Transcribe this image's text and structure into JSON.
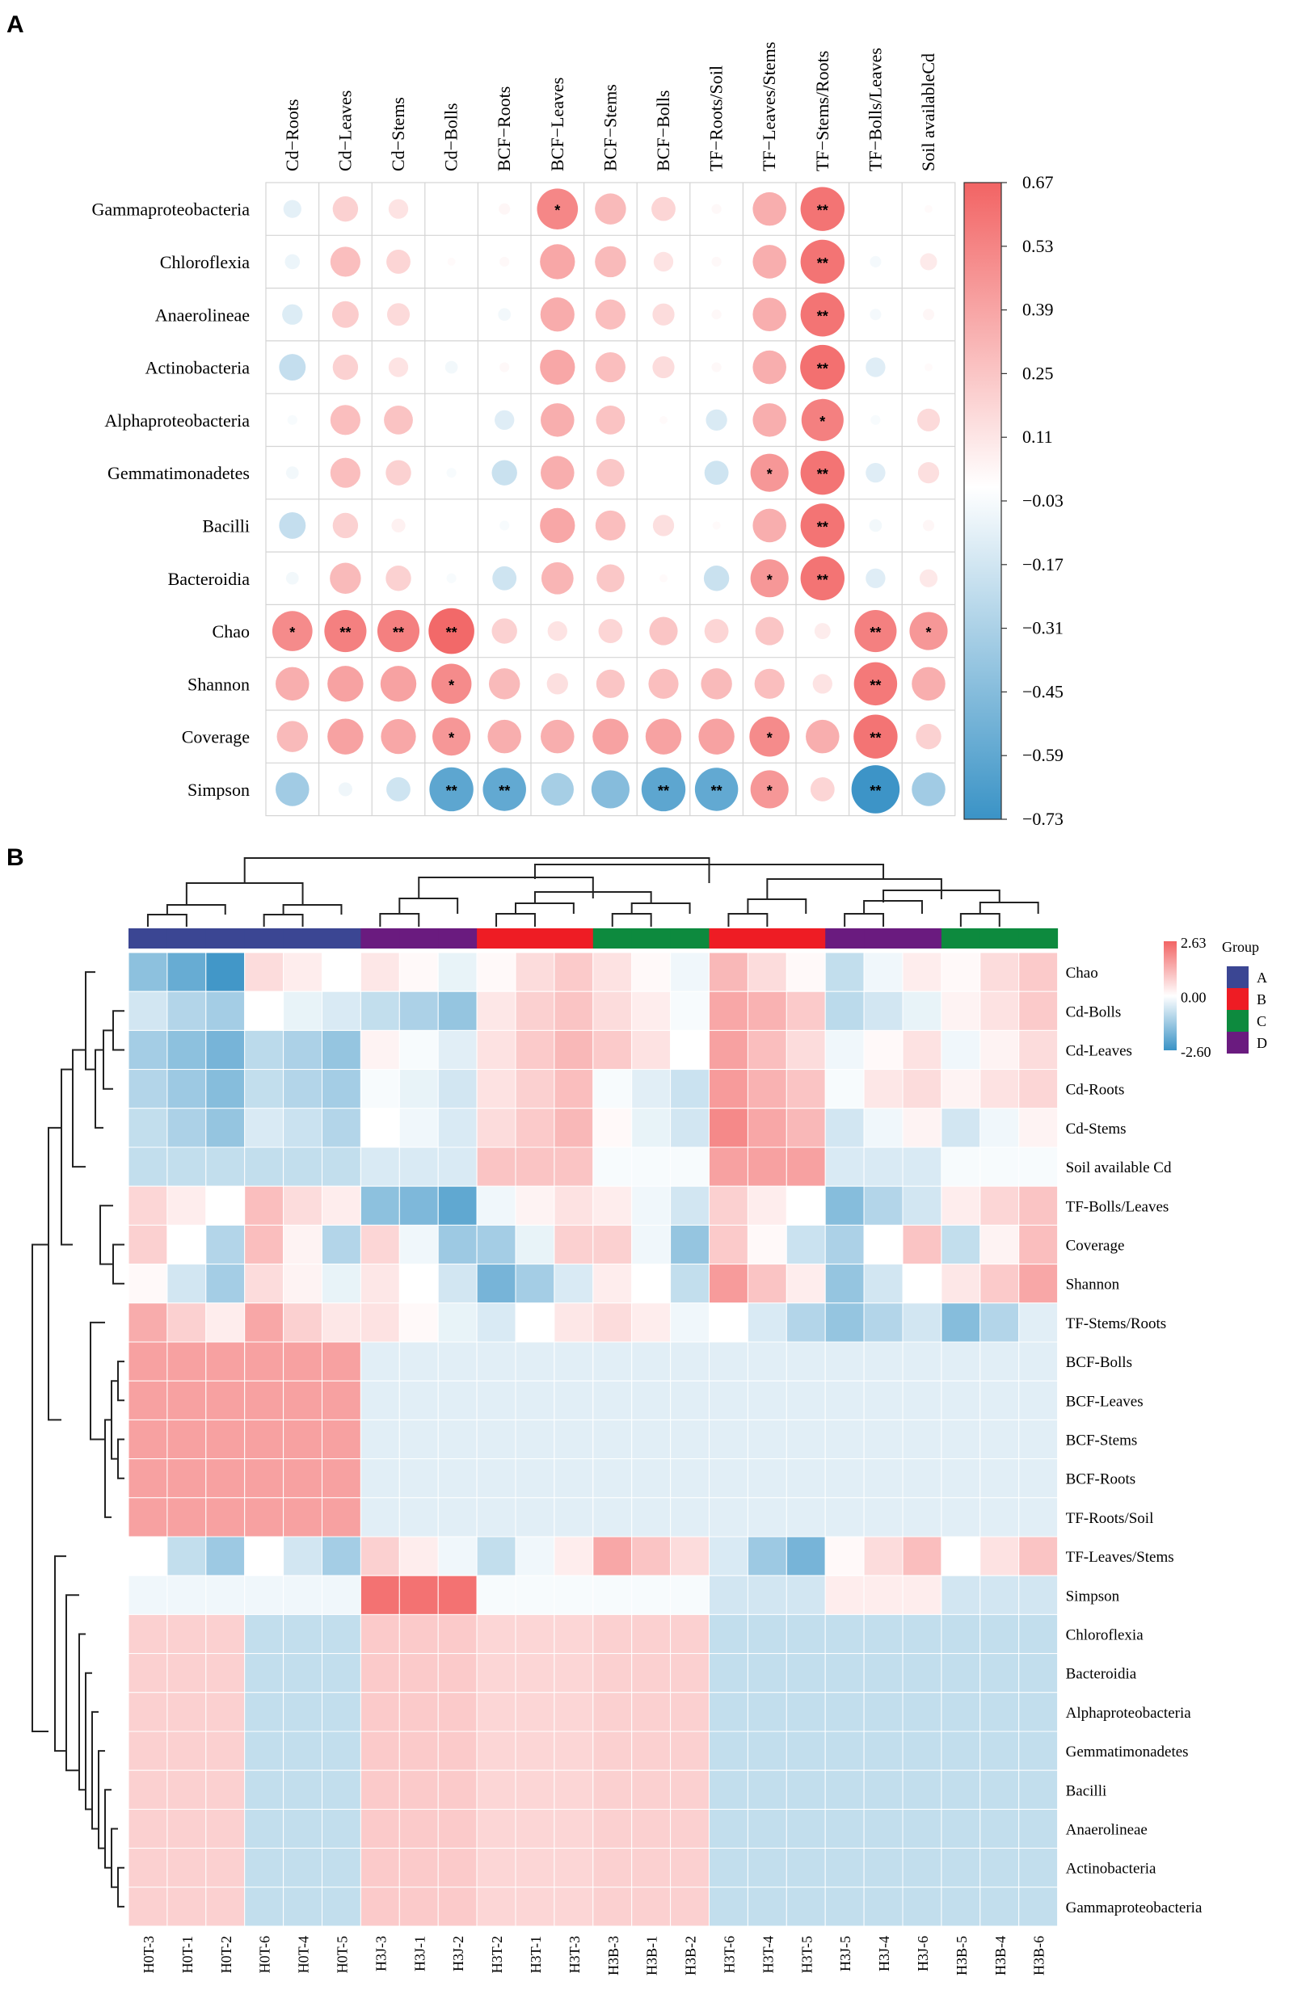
{
  "panel_a_label": "A",
  "panel_b_label": "B",
  "chart_data": [
    {
      "type": "heatmap",
      "subtype": "correlation-bubble",
      "columns": [
        "Cd−Roots",
        "Cd−Leaves",
        "Cd−Stems",
        "Cd−Bolls",
        "BCF−Roots",
        "BCF−Leaves",
        "BCF−Stems",
        "BCF−Bolls",
        "TF−Roots/Soil",
        "TF−Leaves/Stems",
        "TF−Stems/Roots",
        "TF−Bolls/Leaves",
        "Soil availableCd"
      ],
      "rows": [
        "Gammaproteobacteria",
        "Chloroflexia",
        "Anaerolineae",
        "Actinobacteria",
        "Alphaproteobacteria",
        "Gemmatimonadetes",
        "Bacilli",
        "Bacteroidia",
        "Chao",
        "Shannon",
        "Coverage",
        "Simpson"
      ],
      "values": [
        [
          -0.1,
          0.2,
          0.12,
          0.0,
          0.04,
          0.52,
          0.3,
          0.18,
          0.03,
          0.35,
          0.6,
          0.0,
          0.02
        ],
        [
          -0.07,
          0.28,
          0.18,
          0.02,
          0.03,
          0.38,
          0.3,
          0.12,
          0.03,
          0.35,
          0.6,
          -0.04,
          0.09
        ],
        [
          -0.13,
          0.22,
          0.16,
          0.0,
          -0.05,
          0.36,
          0.28,
          0.15,
          0.03,
          0.35,
          0.6,
          -0.04,
          0.04
        ],
        [
          -0.22,
          0.2,
          0.12,
          -0.05,
          0.03,
          0.38,
          0.28,
          0.15,
          0.03,
          0.35,
          0.62,
          -0.12,
          0.02
        ],
        [
          -0.03,
          0.28,
          0.26,
          0.0,
          -0.12,
          0.35,
          0.26,
          0.02,
          -0.14,
          0.35,
          0.55,
          -0.03,
          0.16
        ],
        [
          -0.05,
          0.28,
          0.2,
          -0.03,
          -0.2,
          0.35,
          0.24,
          0.0,
          -0.18,
          0.45,
          0.6,
          -0.12,
          0.14
        ],
        [
          -0.22,
          0.2,
          0.06,
          0.0,
          -0.03,
          0.38,
          0.28,
          0.14,
          0.02,
          0.35,
          0.6,
          -0.05,
          0.04
        ],
        [
          -0.05,
          0.3,
          0.2,
          -0.03,
          -0.18,
          0.32,
          0.24,
          0.02,
          -0.2,
          0.45,
          0.6,
          -0.12,
          0.1
        ],
        [
          0.5,
          0.55,
          0.55,
          0.65,
          0.2,
          0.12,
          0.18,
          0.25,
          0.18,
          0.25,
          0.08,
          0.55,
          0.45
        ],
        [
          0.35,
          0.4,
          0.4,
          0.5,
          0.3,
          0.14,
          0.25,
          0.28,
          0.3,
          0.28,
          0.12,
          0.58,
          0.35
        ],
        [
          0.3,
          0.4,
          0.38,
          0.45,
          0.35,
          0.35,
          0.4,
          0.4,
          0.4,
          0.5,
          0.35,
          0.6,
          0.2
        ],
        [
          -0.35,
          -0.06,
          -0.18,
          -0.6,
          -0.58,
          -0.33,
          -0.45,
          -0.6,
          -0.58,
          0.45,
          0.18,
          -0.72,
          -0.35
        ]
      ],
      "significance": [
        [
          "",
          "",
          "",
          "",
          "",
          "*",
          "",
          "",
          "",
          "",
          "**",
          "",
          ""
        ],
        [
          "",
          "",
          "",
          "",
          "",
          "",
          "",
          "",
          "",
          "",
          "**",
          "",
          ""
        ],
        [
          "",
          "",
          "",
          "",
          "",
          "",
          "",
          "",
          "",
          "",
          "**",
          "",
          ""
        ],
        [
          "",
          "",
          "",
          "",
          "",
          "",
          "",
          "",
          "",
          "",
          "**",
          "",
          ""
        ],
        [
          "",
          "",
          "",
          "",
          "",
          "",
          "",
          "",
          "",
          "",
          "*",
          "",
          ""
        ],
        [
          "",
          "",
          "",
          "",
          "",
          "",
          "",
          "",
          "",
          "*",
          "**",
          "",
          ""
        ],
        [
          "",
          "",
          "",
          "",
          "",
          "",
          "",
          "",
          "",
          "",
          "**",
          "",
          ""
        ],
        [
          "",
          "",
          "",
          "",
          "",
          "",
          "",
          "",
          "",
          "*",
          "**",
          "",
          ""
        ],
        [
          "*",
          "**",
          "**",
          "**",
          "",
          "",
          "",
          "",
          "",
          "",
          "",
          "**",
          "*"
        ],
        [
          "",
          "",
          "",
          "*",
          "",
          "",
          "",
          "",
          "",
          "",
          "",
          "**",
          ""
        ],
        [
          "",
          "",
          "",
          "*",
          "",
          "",
          "",
          "",
          "",
          "*",
          "",
          "**",
          ""
        ],
        [
          "",
          "",
          "",
          "**",
          "**",
          "",
          "",
          "**",
          "**",
          "*",
          "",
          "**",
          ""
        ]
      ],
      "colorbar": {
        "ticks": [
          "0.67",
          "0.53",
          "0.39",
          "0.25",
          "0.11",
          "−0.03",
          "−0.17",
          "−0.31",
          "−0.45",
          "−0.59",
          "−0.73"
        ],
        "range": [
          -0.73,
          0.67
        ],
        "low_color": "#3a93c6",
        "mid_color": "#ffffff",
        "high_color": "#f26464"
      }
    },
    {
      "type": "heatmap",
      "subtype": "clustered",
      "columns": [
        "H0T-3",
        "H0T-1",
        "H0T-2",
        "H0T-6",
        "H0T-4",
        "H0T-5",
        "H3J-3",
        "H3J-1",
        "H3J-2",
        "H3T-2",
        "H3T-1",
        "H3T-3",
        "H3B-3",
        "H3B-1",
        "H3B-2",
        "H3T-6",
        "H3T-4",
        "H3T-5",
        "H3J-5",
        "H3J-4",
        "H3J-6",
        "H3B-5",
        "H3B-4",
        "H3B-6"
      ],
      "column_groups": [
        "A",
        "A",
        "A",
        "A",
        "A",
        "A",
        "D",
        "D",
        "D",
        "B",
        "B",
        "B",
        "C",
        "C",
        "C",
        "B",
        "B",
        "B",
        "D",
        "D",
        "D",
        "C",
        "C",
        "C"
      ],
      "rows": [
        "Chao",
        "Cd-Bolls",
        "Cd-Leaves",
        "Cd-Roots",
        "Cd-Stems",
        "Soil available Cd",
        "TF-Bolls/Leaves",
        "Coverage",
        "Shannon",
        "TF-Stems/Roots",
        "BCF-Bolls",
        "BCF-Leaves",
        "BCF-Stems",
        "BCF-Roots",
        "TF-Roots/Soil",
        "TF-Leaves/Stems",
        "Simpson",
        "Chloroflexia",
        "Bacteroidia",
        "Alphaproteobacteria",
        "Gemmatimonadetes",
        "Bacilli",
        "Anaerolineae",
        "Actinobacteria",
        "Gammaproteobacteria"
      ],
      "values": [
        [
          -1.5,
          -2.0,
          -2.5,
          0.6,
          0.3,
          0.0,
          0.4,
          0.1,
          -0.3,
          0.1,
          0.6,
          0.9,
          0.5,
          0.1,
          -0.2,
          1.2,
          0.6,
          0.1,
          -0.8,
          -0.2,
          0.3,
          0.1,
          0.6,
          0.9
        ],
        [
          -0.6,
          -1.0,
          -1.2,
          0.0,
          -0.3,
          -0.5,
          -0.8,
          -1.1,
          -1.4,
          0.4,
          0.8,
          1.0,
          0.6,
          0.3,
          -0.1,
          1.5,
          1.3,
          0.9,
          -0.9,
          -0.6,
          -0.3,
          0.2,
          0.5,
          0.9
        ],
        [
          -1.2,
          -1.5,
          -1.8,
          -0.9,
          -1.1,
          -1.4,
          0.2,
          -0.1,
          -0.4,
          0.5,
          0.9,
          1.2,
          0.9,
          0.5,
          0.0,
          1.6,
          1.1,
          0.6,
          -0.2,
          0.1,
          0.5,
          -0.2,
          0.2,
          0.6
        ],
        [
          -1.0,
          -1.3,
          -1.6,
          -0.8,
          -1.0,
          -1.2,
          -0.1,
          -0.3,
          -0.6,
          0.5,
          0.8,
          1.1,
          -0.1,
          -0.4,
          -0.7,
          1.7,
          1.3,
          1.0,
          -0.1,
          0.4,
          0.6,
          0.2,
          0.5,
          0.7
        ],
        [
          -0.8,
          -1.1,
          -1.4,
          -0.5,
          -0.7,
          -1.0,
          0.0,
          -0.2,
          -0.5,
          0.6,
          0.9,
          1.2,
          0.1,
          -0.3,
          -0.6,
          2.0,
          1.5,
          1.2,
          -0.6,
          -0.2,
          0.2,
          -0.6,
          -0.2,
          0.2
        ],
        [
          -0.8,
          -0.8,
          -0.8,
          -0.8,
          -0.8,
          -0.8,
          -0.5,
          -0.5,
          -0.5,
          1.0,
          1.0,
          1.0,
          -0.1,
          -0.1,
          -0.1,
          1.6,
          1.6,
          1.6,
          -0.5,
          -0.5,
          -0.5,
          -0.1,
          -0.1,
          -0.1
        ],
        [
          0.7,
          0.3,
          0.0,
          1.1,
          0.6,
          0.3,
          -1.5,
          -1.7,
          -2.1,
          -0.2,
          0.2,
          0.5,
          0.3,
          -0.2,
          -0.6,
          0.8,
          0.3,
          0.0,
          -1.6,
          -1.0,
          -0.6,
          0.3,
          0.7,
          1.0
        ],
        [
          0.8,
          0.0,
          -1.0,
          1.1,
          0.2,
          -1.0,
          0.7,
          -0.2,
          -1.3,
          -1.2,
          -0.3,
          0.8,
          0.8,
          -0.2,
          -1.4,
          0.9,
          0.1,
          -0.7,
          -1.1,
          0.0,
          1.0,
          -0.8,
          0.2,
          1.1
        ],
        [
          0.1,
          -0.6,
          -1.2,
          0.6,
          0.2,
          -0.3,
          0.4,
          0.0,
          -0.6,
          -1.8,
          -1.2,
          -0.5,
          0.3,
          0.0,
          -0.8,
          1.7,
          1.0,
          0.3,
          -1.4,
          -0.6,
          0.0,
          0.4,
          0.9,
          1.5
        ],
        [
          1.4,
          0.8,
          0.3,
          1.5,
          0.8,
          0.4,
          0.5,
          0.1,
          -0.3,
          -0.5,
          0.0,
          0.4,
          0.6,
          0.3,
          -0.2,
          0.0,
          -0.5,
          -1.0,
          -1.4,
          -1.0,
          -0.6,
          -1.6,
          -1.0,
          -0.4
        ],
        [
          1.6,
          1.6,
          1.6,
          1.6,
          1.6,
          1.6,
          -0.4,
          -0.4,
          -0.4,
          -0.4,
          -0.4,
          -0.4,
          -0.4,
          -0.4,
          -0.4,
          -0.4,
          -0.4,
          -0.4,
          -0.4,
          -0.4,
          -0.4,
          -0.4,
          -0.4,
          -0.4
        ],
        [
          1.6,
          1.6,
          1.6,
          1.6,
          1.6,
          1.6,
          -0.4,
          -0.4,
          -0.4,
          -0.4,
          -0.4,
          -0.4,
          -0.4,
          -0.4,
          -0.4,
          -0.4,
          -0.4,
          -0.4,
          -0.4,
          -0.4,
          -0.4,
          -0.4,
          -0.4,
          -0.4
        ],
        [
          1.6,
          1.6,
          1.6,
          1.6,
          1.6,
          1.6,
          -0.4,
          -0.4,
          -0.4,
          -0.4,
          -0.4,
          -0.4,
          -0.4,
          -0.4,
          -0.4,
          -0.4,
          -0.4,
          -0.4,
          -0.4,
          -0.4,
          -0.4,
          -0.4,
          -0.4,
          -0.4
        ],
        [
          1.6,
          1.6,
          1.6,
          1.6,
          1.6,
          1.6,
          -0.4,
          -0.4,
          -0.4,
          -0.4,
          -0.4,
          -0.4,
          -0.4,
          -0.4,
          -0.4,
          -0.4,
          -0.4,
          -0.4,
          -0.4,
          -0.4,
          -0.4,
          -0.4,
          -0.4,
          -0.4
        ],
        [
          1.6,
          1.6,
          1.6,
          1.6,
          1.6,
          1.6,
          -0.4,
          -0.4,
          -0.4,
          -0.4,
          -0.4,
          -0.4,
          -0.4,
          -0.4,
          -0.4,
          -0.4,
          -0.4,
          -0.4,
          -0.4,
          -0.4,
          -0.4,
          -0.4,
          -0.4,
          -0.4
        ],
        [
          0.0,
          -0.8,
          -1.3,
          0.0,
          -0.6,
          -1.2,
          0.8,
          0.3,
          -0.2,
          -0.8,
          -0.2,
          0.3,
          1.5,
          1.0,
          0.6,
          -0.5,
          -1.3,
          -1.8,
          0.1,
          0.6,
          1.1,
          0.0,
          0.5,
          1.0
        ],
        [
          -0.2,
          -0.2,
          -0.2,
          -0.2,
          -0.2,
          -0.2,
          2.4,
          2.4,
          2.4,
          -0.1,
          -0.1,
          -0.1,
          -0.1,
          -0.1,
          -0.1,
          -0.6,
          -0.6,
          -0.6,
          0.3,
          0.3,
          0.3,
          -0.6,
          -0.6,
          -0.6
        ],
        [
          0.8,
          0.8,
          0.8,
          -0.8,
          -0.8,
          -0.8,
          0.9,
          0.9,
          0.9,
          0.7,
          0.7,
          0.7,
          0.8,
          0.8,
          0.8,
          -0.8,
          -0.8,
          -0.8,
          -0.8,
          -0.8,
          -0.8,
          -0.8,
          -0.8,
          -0.8
        ],
        [
          0.8,
          0.8,
          0.8,
          -0.8,
          -0.8,
          -0.8,
          0.9,
          0.9,
          0.9,
          0.7,
          0.7,
          0.7,
          0.8,
          0.8,
          0.8,
          -0.8,
          -0.8,
          -0.8,
          -0.8,
          -0.8,
          -0.8,
          -0.8,
          -0.8,
          -0.8
        ],
        [
          0.8,
          0.8,
          0.8,
          -0.8,
          -0.8,
          -0.8,
          0.9,
          0.9,
          0.9,
          0.7,
          0.7,
          0.7,
          0.8,
          0.8,
          0.8,
          -0.8,
          -0.8,
          -0.8,
          -0.8,
          -0.8,
          -0.8,
          -0.8,
          -0.8,
          -0.8
        ],
        [
          0.8,
          0.8,
          0.8,
          -0.8,
          -0.8,
          -0.8,
          0.9,
          0.9,
          0.9,
          0.7,
          0.7,
          0.7,
          0.8,
          0.8,
          0.8,
          -0.8,
          -0.8,
          -0.8,
          -0.8,
          -0.8,
          -0.8,
          -0.8,
          -0.8,
          -0.8
        ],
        [
          0.8,
          0.8,
          0.8,
          -0.8,
          -0.8,
          -0.8,
          0.9,
          0.9,
          0.9,
          0.7,
          0.7,
          0.7,
          0.8,
          0.8,
          0.8,
          -0.8,
          -0.8,
          -0.8,
          -0.8,
          -0.8,
          -0.8,
          -0.8,
          -0.8,
          -0.8
        ],
        [
          0.8,
          0.8,
          0.8,
          -0.8,
          -0.8,
          -0.8,
          0.9,
          0.9,
          0.9,
          0.7,
          0.7,
          0.7,
          0.8,
          0.8,
          0.8,
          -0.8,
          -0.8,
          -0.8,
          -0.8,
          -0.8,
          -0.8,
          -0.8,
          -0.8,
          -0.8
        ],
        [
          0.8,
          0.8,
          0.8,
          -0.8,
          -0.8,
          -0.8,
          0.9,
          0.9,
          0.9,
          0.7,
          0.7,
          0.7,
          0.8,
          0.8,
          0.8,
          -0.8,
          -0.8,
          -0.8,
          -0.8,
          -0.8,
          -0.8,
          -0.8,
          -0.8,
          -0.8
        ],
        [
          0.8,
          0.8,
          0.8,
          -0.8,
          -0.8,
          -0.8,
          0.9,
          0.9,
          0.9,
          0.7,
          0.7,
          0.7,
          0.8,
          0.8,
          0.8,
          -0.8,
          -0.8,
          -0.8,
          -0.8,
          -0.8,
          -0.8,
          -0.8,
          -0.8,
          -0.8
        ]
      ],
      "colorbar": {
        "ticks": [
          "2.63",
          "0.00",
          "-2.60"
        ],
        "range": [
          -2.6,
          2.63
        ],
        "low_color": "#3a93c6",
        "mid_color": "#ffffff",
        "high_color": "#f26464"
      },
      "legend": {
        "title": "Group",
        "items": [
          {
            "label": "A",
            "color": "#3b4693"
          },
          {
            "label": "B",
            "color": "#ee1c24"
          },
          {
            "label": "C",
            "color": "#0d8a3e"
          },
          {
            "label": "D",
            "color": "#6a1b7f"
          }
        ]
      }
    }
  ]
}
